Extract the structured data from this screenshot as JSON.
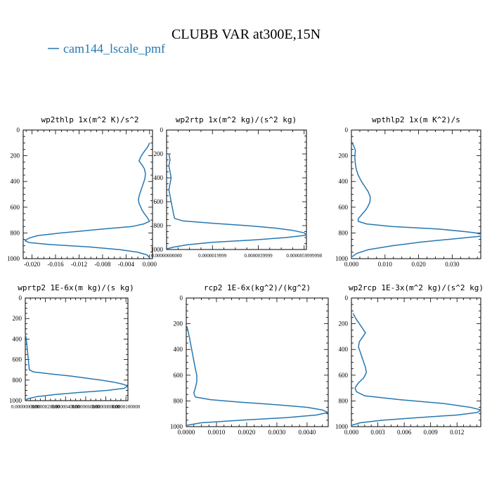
{
  "figure": {
    "title": "CLUBB VAR at300E,15N",
    "legend_label": "cam144_lscale_pmf",
    "line_color": "#2678b2"
  },
  "chart_data": [
    {
      "type": "line",
      "title": "wp2thlp",
      "units": "1x(m^2 K)/s^2",
      "xlim": [
        -0.0215,
        0.0005
      ],
      "ylim": [
        1000,
        0
      ],
      "y_inverted": true,
      "xticks": [
        -0.02,
        -0.016,
        -0.012,
        -0.008,
        -0.004,
        0.0
      ],
      "xtick_labels": [
        "-0.020",
        "-0.016",
        "-0.012",
        "-0.008",
        "-0.004",
        "0.000"
      ],
      "yticks": [
        0,
        200,
        400,
        600,
        800,
        1000
      ],
      "series": [
        {
          "y": [
            100,
            130,
            160,
            200,
            240,
            270,
            300,
            340,
            380,
            420,
            460,
            500,
            540,
            570,
            600,
            620,
            650,
            680,
            710,
            730,
            750,
            770,
            800,
            820,
            840,
            860,
            875,
            890,
            910,
            930,
            950,
            970,
            990
          ],
          "x": [
            0.0,
            -0.0003,
            -0.0008,
            -0.0014,
            -0.0018,
            -0.0013,
            -0.0009,
            -0.0007,
            -0.0008,
            -0.0011,
            -0.0014,
            -0.0017,
            -0.0019,
            -0.0018,
            -0.0015,
            -0.0013,
            -0.0009,
            -0.0004,
            0.0,
            -0.001,
            -0.003,
            -0.008,
            -0.015,
            -0.019,
            -0.0205,
            -0.0212,
            -0.0205,
            -0.017,
            -0.01,
            -0.005,
            -0.002,
            -0.0005,
            0.0
          ]
        }
      ]
    },
    {
      "type": "line",
      "title": "wp2rtp",
      "units": "1x(m^2 kg)/(s^2 kg)",
      "xlim": [
        0,
        6.1e-06
      ],
      "ylim": [
        1000,
        0
      ],
      "y_inverted": true,
      "xticks": [
        0,
        2e-06,
        4e-06,
        6e-06
      ],
      "xtick_labels": [
        "0.00000000000",
        "0.0000019999",
        "0.0000039999",
        "0.0000059999998"
      ],
      "yticks": [
        0,
        200,
        400,
        600,
        800,
        1000
      ],
      "series": [
        {
          "y": [
            200,
            250,
            300,
            350,
            400,
            450,
            500,
            550,
            600,
            650,
            700,
            740,
            760,
            780,
            800,
            820,
            840,
            860,
            880,
            900,
            920,
            940,
            960,
            980,
            995
          ],
          "x": [
            1e-07,
            1.5e-07,
            1e-07,
            1.5e-07,
            2e-07,
            1.5e-07,
            1e-07,
            1.5e-07,
            2e-07,
            2.5e-07,
            3e-07,
            3.5e-07,
            7e-07,
            2e-06,
            3.5e-06,
            4.7e-06,
            5.5e-06,
            6e-06,
            6.1e-06,
            5.2e-06,
            3.8e-06,
            2e-06,
            9e-07,
            3e-07,
            0.0
          ]
        }
      ]
    },
    {
      "type": "line",
      "title": "wpthlp2",
      "units": "1x(m K^2)/s",
      "xlim": [
        0,
        0.0385
      ],
      "ylim": [
        1000,
        0
      ],
      "y_inverted": true,
      "xticks": [
        0.0,
        0.01,
        0.02,
        0.03
      ],
      "xtick_labels": [
        "0.000",
        "0.010",
        "0.020",
        "0.030"
      ],
      "yticks": [
        0,
        200,
        400,
        600,
        800,
        1000
      ],
      "series": [
        {
          "y": [
            100,
            130,
            160,
            200,
            250,
            300,
            350,
            400,
            440,
            480,
            520,
            560,
            600,
            630,
            660,
            690,
            710,
            730,
            750,
            770,
            790,
            800,
            810,
            825,
            845,
            870,
            900,
            930,
            960,
            985
          ],
          "x": [
            0.0002,
            0.0008,
            0.0012,
            0.001,
            0.0011,
            0.0014,
            0.002,
            0.003,
            0.004,
            0.005,
            0.0056,
            0.0055,
            0.0048,
            0.004,
            0.003,
            0.002,
            0.002,
            0.0045,
            0.012,
            0.026,
            0.034,
            0.037,
            0.0385,
            0.0385,
            0.031,
            0.021,
            0.012,
            0.005,
            0.0015,
            0.0002
          ]
        }
      ]
    },
    {
      "type": "line",
      "title": "wprtp2",
      "units": "1E-6x(m kg)/(s kg)",
      "xlim": [
        0,
        1.02e-05
      ],
      "ylim": [
        1000,
        0
      ],
      "y_inverted": true,
      "xticks": [
        0,
        2e-06,
        4e-06,
        6e-06,
        8e-06,
        1e-05
      ],
      "xtick_labels": [
        "0.0000000000",
        "0.0000020000",
        "0.0000040000",
        "0.0000060000",
        "0.0000080000",
        "0.0000100000"
      ],
      "yticks": [
        0,
        200,
        400,
        600,
        800,
        1000
      ],
      "series": [
        {
          "y": [
            350,
            400,
            450,
            500,
            550,
            600,
            650,
            700,
            720,
            740,
            760,
            780,
            800,
            820,
            840,
            860,
            880,
            900,
            920,
            940,
            960,
            980,
            995
          ],
          "x": [
            0.0,
            1e-07,
            1.5e-07,
            2e-07,
            2.5e-07,
            3e-07,
            3.5e-07,
            4e-07,
            8e-07,
            2.5e-06,
            4.5e-06,
            6e-06,
            7.5e-06,
            8.8e-06,
            9.7e-06,
            1.02e-05,
            9.8e-06,
            8.2e-06,
            5.5e-06,
            3e-06,
            1.2e-06,
            3e-07,
            0.0
          ]
        }
      ]
    },
    {
      "type": "line",
      "title": "rcp2",
      "units": "1E-6x(kg^2)/(kg^2)",
      "xlim": [
        0,
        0.0047
      ],
      "ylim": [
        1000,
        0
      ],
      "y_inverted": true,
      "xticks": [
        0.0,
        0.001,
        0.002,
        0.003,
        0.004
      ],
      "xtick_labels": [
        "0.0000",
        "0.0010",
        "0.0020",
        "0.0030",
        "0.0040"
      ],
      "yticks": [
        0,
        200,
        400,
        600,
        800,
        1000
      ],
      "series": [
        {
          "y": [
            220,
            260,
            300,
            350,
            400,
            450,
            500,
            550,
            600,
            650,
            700,
            740,
            770,
            790,
            810,
            830,
            850,
            870,
            890,
            910,
            930,
            950,
            970,
            990
          ],
          "x": [
            2e-05,
            6e-05,
            0.0001,
            0.00014,
            0.00018,
            0.00022,
            0.00026,
            0.0003,
            0.00035,
            0.00035,
            0.0003,
            0.00025,
            0.0003,
            0.0008,
            0.0018,
            0.003,
            0.004,
            0.0045,
            0.0047,
            0.0043,
            0.0033,
            0.0018,
            0.0005,
            0.0
          ]
        }
      ]
    },
    {
      "type": "line",
      "title": "wp2rcp",
      "units": "1E-3x(m^2 kg)/(s^2 kg)",
      "xlim": [
        0,
        0.0147
      ],
      "ylim": [
        1000,
        0
      ],
      "y_inverted": true,
      "xticks": [
        0.0,
        0.003,
        0.006,
        0.009,
        0.012
      ],
      "xtick_labels": [
        "0.000",
        "0.003",
        "0.006",
        "0.009",
        "0.012"
      ],
      "yticks": [
        0,
        200,
        400,
        600,
        800,
        1000
      ],
      "series": [
        {
          "y": [
            120,
            160,
            200,
            240,
            270,
            300,
            340,
            380,
            420,
            460,
            500,
            540,
            580,
            620,
            660,
            700,
            730,
            760,
            790,
            820,
            850,
            870,
            890,
            910,
            930,
            950,
            970,
            990
          ],
          "x": [
            0.0002,
            0.0005,
            0.0009,
            0.0013,
            0.0016,
            0.0013,
            0.0009,
            0.0008,
            0.001,
            0.0012,
            0.0014,
            0.0016,
            0.0017,
            0.0014,
            0.0008,
            0.0004,
            0.0006,
            0.0015,
            0.0055,
            0.0105,
            0.0135,
            0.0147,
            0.0143,
            0.012,
            0.0075,
            0.0035,
            0.001,
            0.0
          ]
        }
      ]
    }
  ]
}
